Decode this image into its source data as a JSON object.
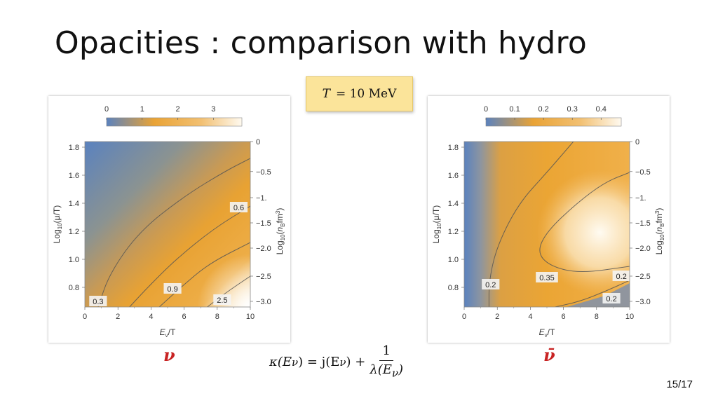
{
  "slide": {
    "title": "Opacities : comparison with hydro",
    "temperature_box": {
      "variable": "T",
      "rest": "= 10 MeV"
    },
    "left_symbol": "ν",
    "right_symbol": "ν̄",
    "formula": {
      "lhs": "κ(E",
      "sub": "ν",
      "mid": ") = j(E",
      "mid2": ") +",
      "numerator": "1",
      "denominator": "λ(E",
      "den_close": ")"
    },
    "page_number": "15/17"
  },
  "colors": {
    "low": "#5b82be",
    "mid": "#e9a336",
    "high": "#fffaf0",
    "contour": "#555555"
  },
  "chart_data": [
    {
      "type": "heatmap",
      "name": "nu",
      "xlabel": "E_ν/T",
      "ylabel": "Log10(μ/T)",
      "ylabel_right": "Log10(n_B fm³)",
      "xlim": [
        0,
        10
      ],
      "ylim": [
        0.66,
        1.84
      ],
      "xticks": [
        "0",
        "2",
        "4",
        "6",
        "8",
        "10"
      ],
      "yticks": [
        "0.8",
        "1.0",
        "1.2",
        "1.4",
        "1.6",
        "1.8"
      ],
      "yticks_right": [
        "0",
        "−0.5",
        "−1.",
        "−1.5",
        "−2.0",
        "−2.5",
        "−3.0"
      ],
      "colorbar": {
        "ticks": [
          "0",
          "1",
          "2",
          "3"
        ],
        "range": [
          0,
          3.8
        ]
      },
      "contours": [
        {
          "value": 0.3,
          "label": "0.3",
          "points": [
            [
              0.8,
              0.66
            ],
            [
              1.5,
              0.9
            ],
            [
              3.3,
              1.2
            ],
            [
              6.0,
              1.45
            ],
            [
              8.5,
              1.63
            ],
            [
              10,
              1.72
            ]
          ]
        },
        {
          "value": 0.6,
          "label": "0.6",
          "points": [
            [
              2.7,
              0.66
            ],
            [
              3.8,
              0.8
            ],
            [
              5.5,
              1.0
            ],
            [
              7.8,
              1.22
            ],
            [
              10,
              1.38
            ]
          ]
        },
        {
          "value": 0.9,
          "label": "0.9",
          "points": [
            [
              4.5,
              0.66
            ],
            [
              5.8,
              0.8
            ],
            [
              7.5,
              0.97
            ],
            [
              10,
              1.12
            ]
          ]
        },
        {
          "value": 2.5,
          "label": "2.5",
          "points": [
            [
              7.4,
              0.66
            ],
            [
              8.5,
              0.76
            ],
            [
              10,
              0.88
            ]
          ]
        }
      ],
      "contour_labels": [
        {
          "text": "0.3",
          "x": 0.8,
          "y": 0.7
        },
        {
          "text": "0.6",
          "x": 9.3,
          "y": 1.37
        },
        {
          "text": "0.9",
          "x": 5.3,
          "y": 0.79
        },
        {
          "text": "2.5",
          "x": 8.3,
          "y": 0.71
        }
      ]
    },
    {
      "type": "heatmap",
      "name": "nubar",
      "xlabel": "E_ν/T",
      "ylabel": "Log10(μ/T)",
      "ylabel_right": "Log10(n_B fm³)",
      "xlim": [
        0,
        10
      ],
      "ylim": [
        0.66,
        1.84
      ],
      "xticks": [
        "0",
        "2",
        "4",
        "6",
        "8",
        "10"
      ],
      "yticks": [
        "0.8",
        "1.0",
        "1.2",
        "1.4",
        "1.6",
        "1.8"
      ],
      "yticks_right": [
        "0",
        "−0.5",
        "−1.",
        "−1.5",
        "−2.0",
        "−2.5",
        "−3.0"
      ],
      "colorbar": {
        "ticks": [
          "0",
          "0.1",
          "0.2",
          "0.3",
          "0.4"
        ],
        "range": [
          0,
          0.47
        ]
      },
      "contours": [
        {
          "value": 0.2,
          "label": "0.2",
          "points": [
            [
              1.5,
              0.66
            ],
            [
              1.5,
              0.85
            ],
            [
              2.0,
              1.1
            ],
            [
              3.3,
              1.4
            ],
            [
              5.0,
              1.62
            ],
            [
              6.6,
              1.84
            ]
          ]
        },
        {
          "value": 0.35,
          "label": "0.35",
          "points": [
            [
              10,
              0.95
            ],
            [
              7.0,
              0.9
            ],
            [
              5.2,
              0.95
            ],
            [
              4.4,
              1.05
            ],
            [
              5.0,
              1.2
            ],
            [
              6.8,
              1.4
            ],
            [
              8.5,
              1.55
            ],
            [
              10,
              1.62
            ]
          ]
        },
        {
          "value": 0.2,
          "label": "0.2",
          "points": [
            [
              5.5,
              0.66
            ],
            [
              7.0,
              0.7
            ],
            [
              8.5,
              0.77
            ],
            [
              10,
              0.85
            ]
          ]
        }
      ],
      "contour_labels": [
        {
          "text": "0.2",
          "x": 1.6,
          "y": 0.82
        },
        {
          "text": "0.35",
          "x": 5.0,
          "y": 0.87
        },
        {
          "text": "0.2",
          "x": 9.5,
          "y": 0.88
        },
        {
          "text": "0.2",
          "x": 8.9,
          "y": 0.72
        }
      ]
    }
  ]
}
